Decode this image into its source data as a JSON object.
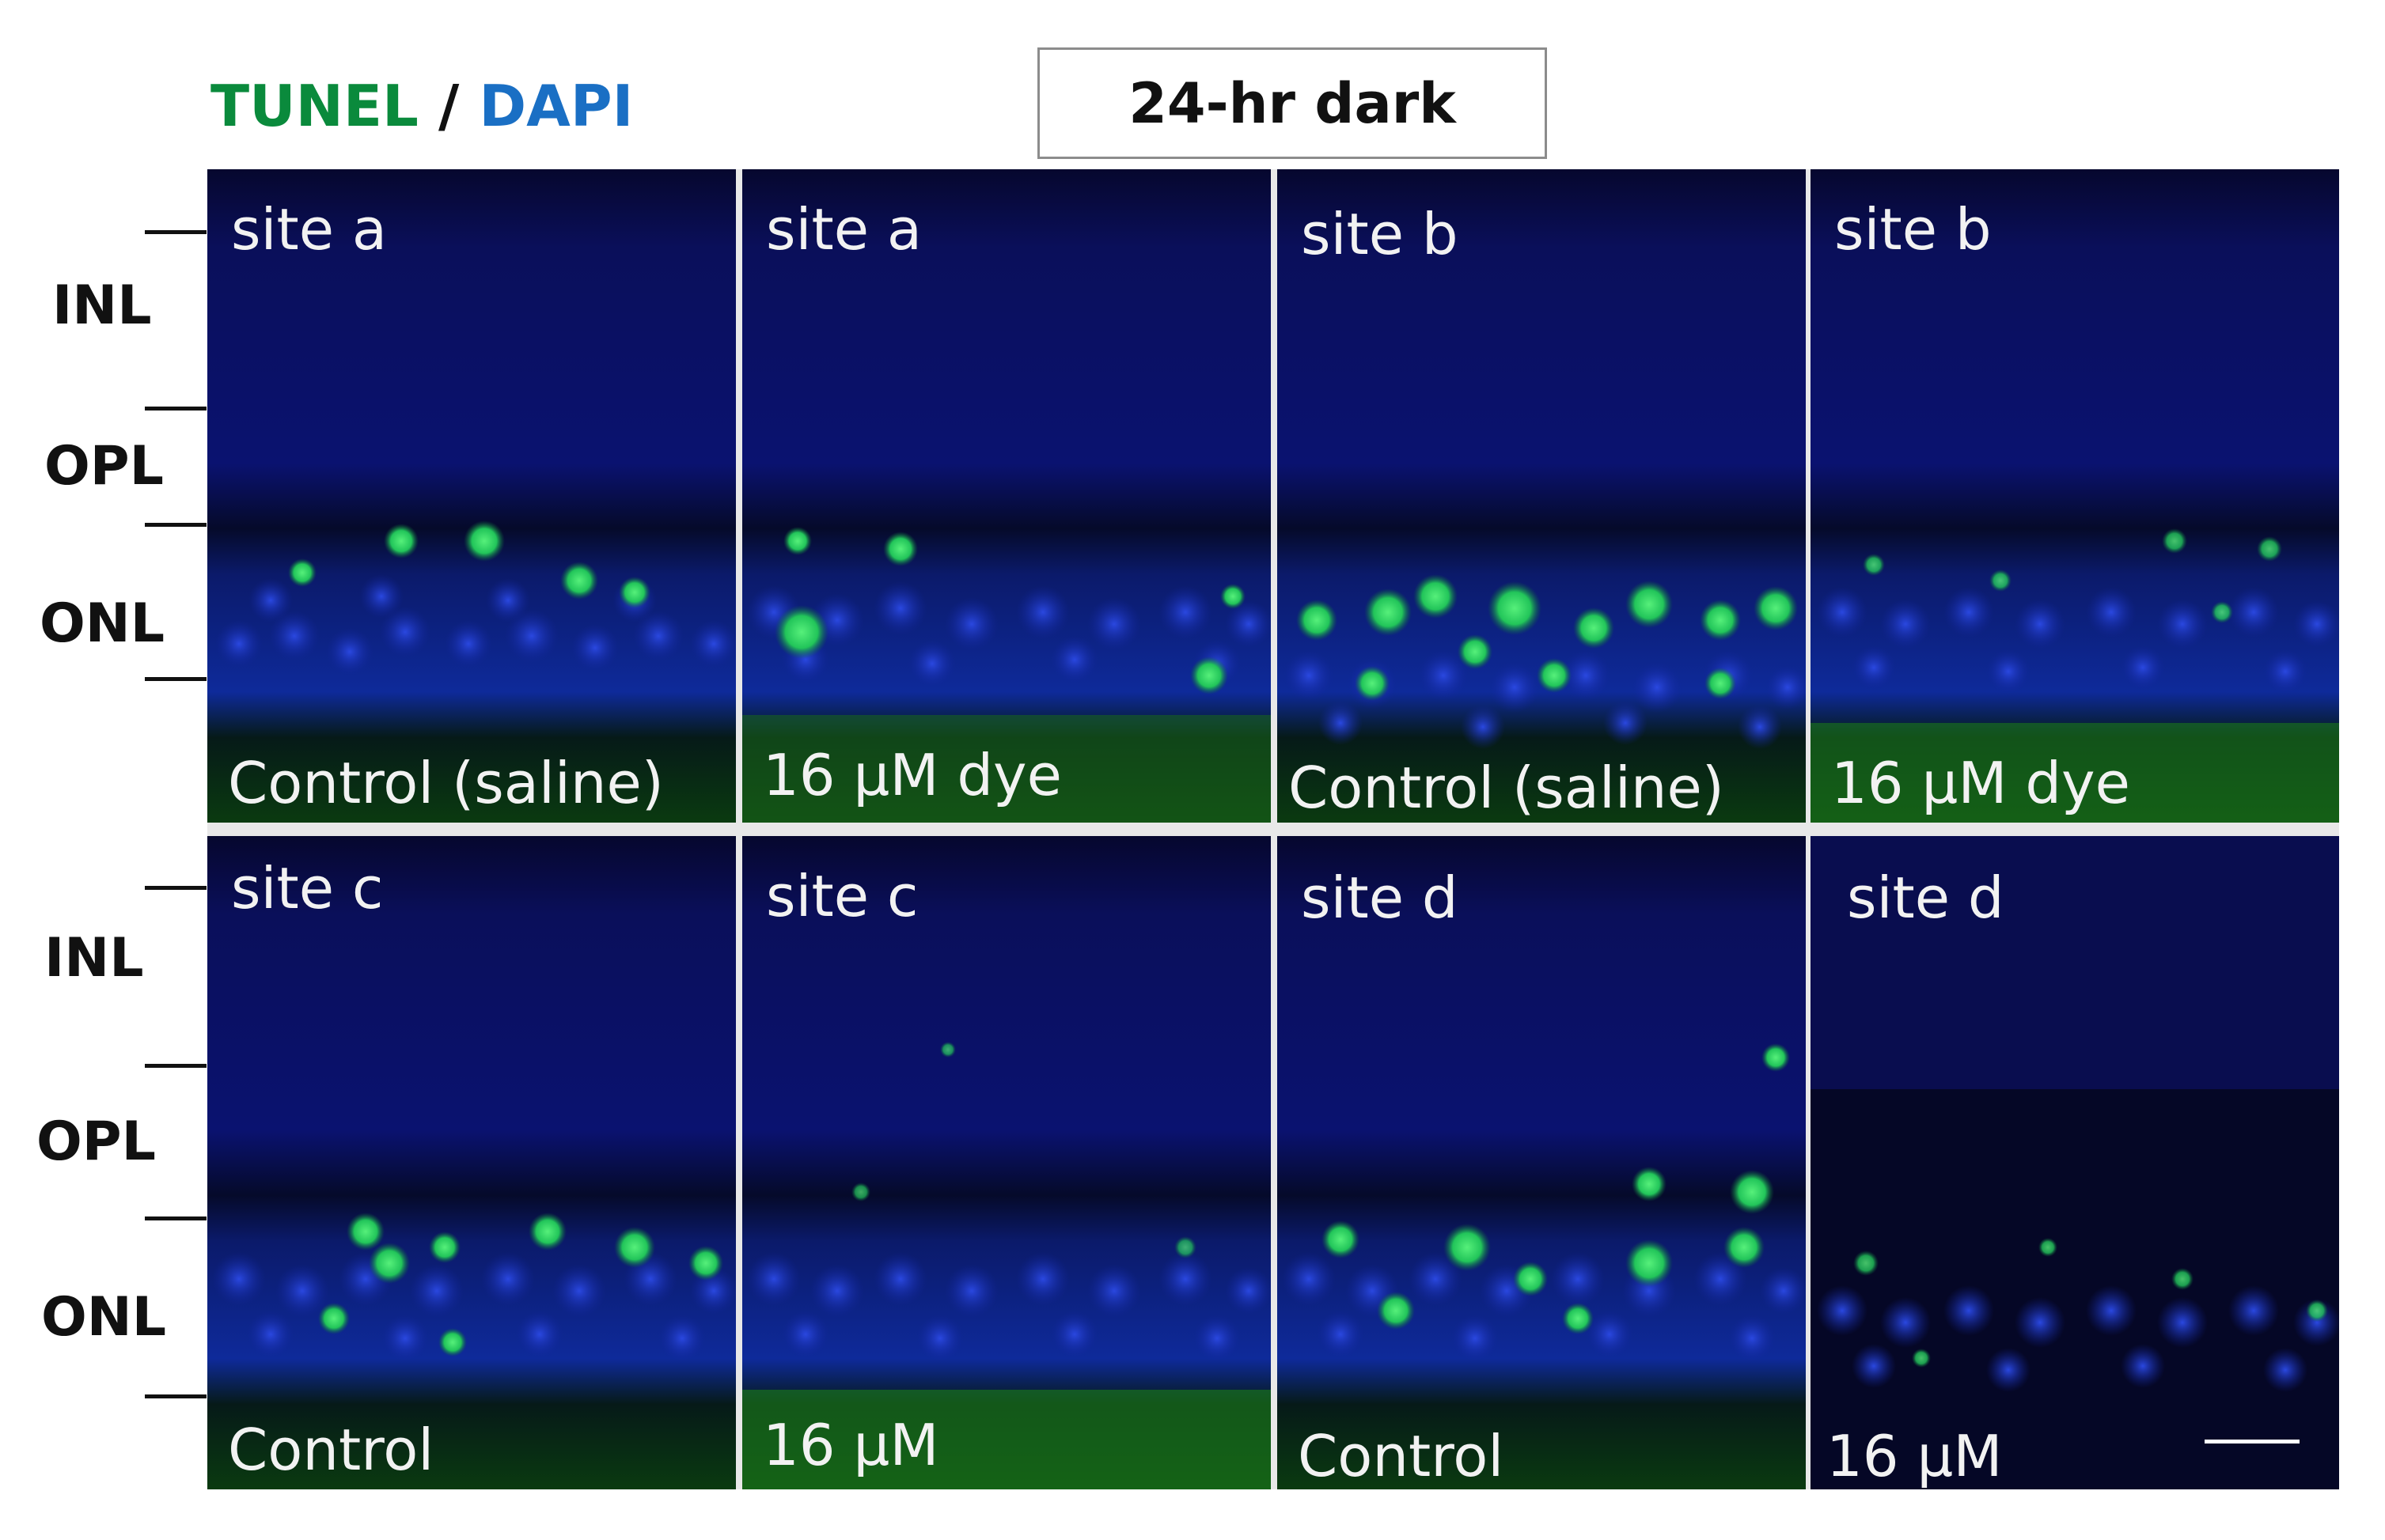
{
  "legend": {
    "stain_green": "TUNEL",
    "separator": "/",
    "stain_blue": "DAPI",
    "green_color": "#0a8a3c",
    "blue_color": "#1a6fc4"
  },
  "condition": "24-hr dark",
  "layer_labels": {
    "top_row": [
      "INL",
      "OPL",
      "ONL"
    ],
    "bottom_row": [
      "INL",
      "OPL",
      "ONL"
    ]
  },
  "panels": [
    {
      "site": "site a",
      "condition": "Control (saline)"
    },
    {
      "site": "site a",
      "condition": "16 µM dye"
    },
    {
      "site": "site b",
      "condition": "Control (saline)"
    },
    {
      "site": "site b",
      "condition": "16 µM dye"
    },
    {
      "site": "site c",
      "condition": "Control"
    },
    {
      "site": "site c",
      "condition": "16 µM"
    },
    {
      "site": "site d",
      "condition": "Control"
    },
    {
      "site": "site d",
      "condition": "16 µM"
    }
  ]
}
